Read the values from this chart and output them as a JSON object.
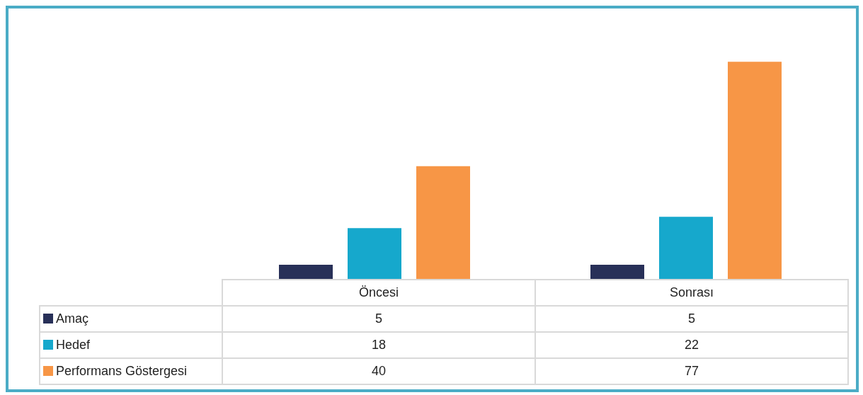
{
  "chart_data": {
    "type": "bar",
    "categories": [
      "Öncesi",
      "Sonrası"
    ],
    "series": [
      {
        "name": "Amaç",
        "color": "#283058",
        "values": [
          5,
          5
        ]
      },
      {
        "name": "Hedef",
        "color": "#16a8cc",
        "values": [
          18,
          22
        ]
      },
      {
        "name": "Performans Göstergesi",
        "color": "#f79646",
        "values": [
          40,
          77
        ]
      }
    ],
    "data_labels": true,
    "legend": "bottom left",
    "grid": false
  }
}
